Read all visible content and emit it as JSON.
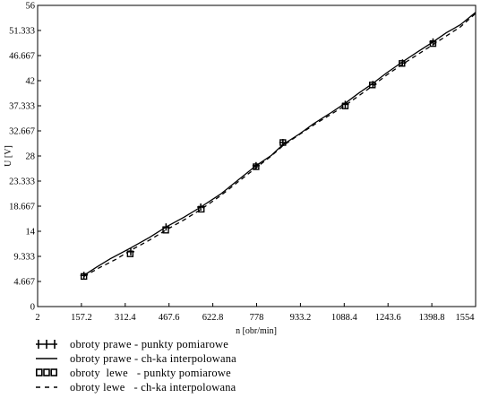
{
  "chart_data": {
    "type": "line",
    "title": "",
    "xlabel": "n [obr/min]",
    "ylabel": "U [V]",
    "xlim": [
      2,
      1554
    ],
    "ylim": [
      0,
      56
    ],
    "x_ticks": [
      "2",
      "157.2",
      "312.4",
      "467.6",
      "622.8",
      "778",
      "933.2",
      "1088.4",
      "1243.6",
      "1398.8",
      "1554"
    ],
    "y_ticks": [
      "0",
      "4.667",
      "9.333",
      "14",
      "18.667",
      "23.333",
      "28",
      "32.667",
      "37.333",
      "42",
      "46.667",
      "51.333",
      "56"
    ],
    "grid": false,
    "legend_position": "bottom-left",
    "series": [
      {
        "name": "obroty prawe - punkty pomiarowe",
        "marker": "plus",
        "x": [
          166,
          332,
          457,
          580,
          776,
          871,
          1092,
          1190,
          1295,
          1403
        ],
        "y": [
          5.8,
          10.2,
          14.8,
          18.5,
          26.2,
          30.5,
          37.6,
          41.3,
          45.3,
          49.2
        ]
      },
      {
        "name": "obroty prawe - ch-ka interpolowana",
        "style": "solid",
        "x": [
          166,
          210,
          260,
          332,
          400,
          457,
          520,
          580,
          650,
          700,
          776,
          830,
          871,
          930,
          980,
          1040,
          1092,
          1140,
          1190,
          1240,
          1295,
          1350,
          1403,
          1450,
          1500,
          1554
        ],
        "y": [
          5.8,
          7.3,
          8.9,
          10.9,
          12.9,
          14.8,
          16.6,
          18.5,
          20.9,
          23.0,
          26.2,
          28.1,
          30.1,
          32.1,
          34.0,
          36.0,
          37.8,
          39.7,
          41.5,
          43.5,
          45.5,
          47.4,
          49.2,
          50.9,
          52.4,
          54.7
        ]
      },
      {
        "name": "obroty  lewe   - punkty pomiarowe",
        "marker": "square",
        "x": [
          166,
          330,
          456,
          582,
          776,
          871,
          1092,
          1188,
          1293,
          1403
        ],
        "y": [
          5.6,
          9.8,
          14.2,
          18.1,
          26.0,
          30.5,
          37.3,
          41.2,
          45.2,
          48.9
        ]
      },
      {
        "name": "obroty lewe   - ch-ka interpolowana",
        "style": "dashed",
        "x": [
          166,
          220,
          280,
          330,
          400,
          456,
          520,
          582,
          650,
          710,
          776,
          830,
          871,
          930,
          990,
          1040,
          1092,
          1140,
          1188,
          1240,
          1293,
          1350,
          1403,
          1450,
          1500,
          1554
        ],
        "y": [
          5.6,
          7.2,
          8.8,
          10.4,
          12.4,
          14.2,
          16.1,
          18.1,
          20.6,
          23.1,
          25.8,
          28.0,
          29.9,
          32.0,
          34.1,
          35.7,
          37.4,
          39.2,
          41.0,
          43.1,
          45.0,
          46.9,
          48.7,
          50.3,
          52.0,
          54.5
        ]
      }
    ]
  }
}
